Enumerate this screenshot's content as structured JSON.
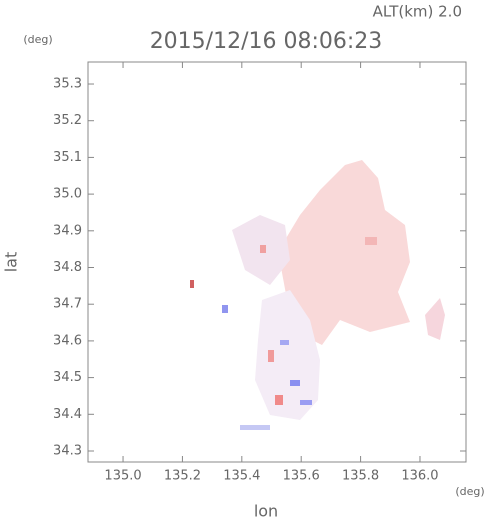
{
  "chart_data": {
    "type": "map",
    "title": "2015/12/16 08:06:23",
    "subtitle": "ALT(km) 2.0",
    "x_label": "lon",
    "y_label": "lat",
    "x_unit": "(deg)",
    "y_unit": "(deg)",
    "xlim": [
      134.882,
      136.155
    ],
    "ylim": [
      34.27,
      35.36
    ],
    "xticks": [
      {
        "value": 135,
        "label": "135.0"
      },
      135.2,
      135.4,
      135.6,
      135.8,
      {
        "value": 136,
        "label": "136.0"
      }
    ],
    "yticks": [
      34.3,
      34.4,
      34.5,
      34.6,
      34.7,
      34.8,
      34.9,
      {
        "value": 35,
        "label": "35.0"
      },
      35.1,
      35.2,
      35.3
    ]
  }
}
